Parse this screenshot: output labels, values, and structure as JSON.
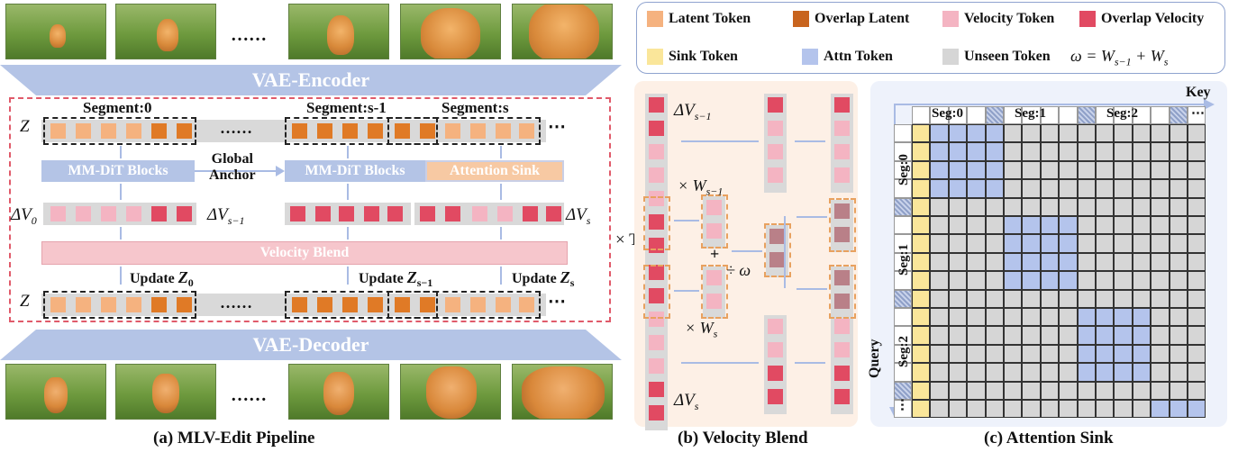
{
  "panel_a": {
    "dots_top": "……",
    "dots_bottom": "……",
    "vae_encoder": "VAE-Encoder",
    "vae_decoder": "VAE-Decoder",
    "segment0": "Segment:0",
    "segment_s1": "Segment:s-1",
    "segment_s": "Segment:s",
    "z_label": "Z",
    "mmdit1": "MM-DiT Blocks",
    "mmdit2": "MM-DiT Blocks",
    "attention_sink": "Attention Sink",
    "global": "Global",
    "anchor": "Anchor",
    "dv0": "ΔV",
    "dv0_sub": "0",
    "dvs1": "ΔV",
    "dvs1_sub": "s−1",
    "dvs": "ΔV",
    "dvs_sub": "s",
    "velocity_blend": "Velocity Blend",
    "times_t": "× T",
    "update": "Update",
    "update_z0_sub": "0",
    "update_zs1_sub": "s−1",
    "update_zs_sub": "s",
    "row_dots": "……",
    "end_dots": "⋯",
    "caption": "(a) MLV-Edit Pipeline"
  },
  "legend": {
    "latent": "Latent Token",
    "overlap_latent": "Overlap Latent",
    "velocity": "Velocity Token",
    "overlap_velocity": "Overlap Velocity",
    "sink": "Sink Token",
    "attn": "Attn Token",
    "unseen": "Unseen Token",
    "omega": "ω = W",
    "omega_sub1": "s−1",
    "omega_plus": " + W",
    "omega_sub2": "s"
  },
  "panel_b": {
    "dvs1": "ΔV",
    "dvs1_sub": "s−1",
    "times_ws1": "× W",
    "times_ws1_sub": "s−1",
    "plus": "+",
    "div_omega": "÷ ω",
    "times_ws": "× W",
    "times_ws_sub": "s",
    "dvs": "ΔV",
    "dvs_sub": "s",
    "caption": "(b) Velocity Blend"
  },
  "panel_c": {
    "key": "Key",
    "query": "Query",
    "seg0": "Seg:0",
    "seg1": "Seg:1",
    "seg2": "Seg:2",
    "dots": "⋯",
    "caption": "(c) Attention Sink"
  },
  "colors": {
    "latent": "#f5b27f",
    "overlap_latent": "#e07a26",
    "velocity": "#f4b4c2",
    "overlap_velocity": "#e14a62",
    "sink": "#fae69a",
    "attn": "#b4c4ec",
    "unseen": "#d6d6d6",
    "vae": "#b4c4e6",
    "blend": "#f6c6cc"
  }
}
